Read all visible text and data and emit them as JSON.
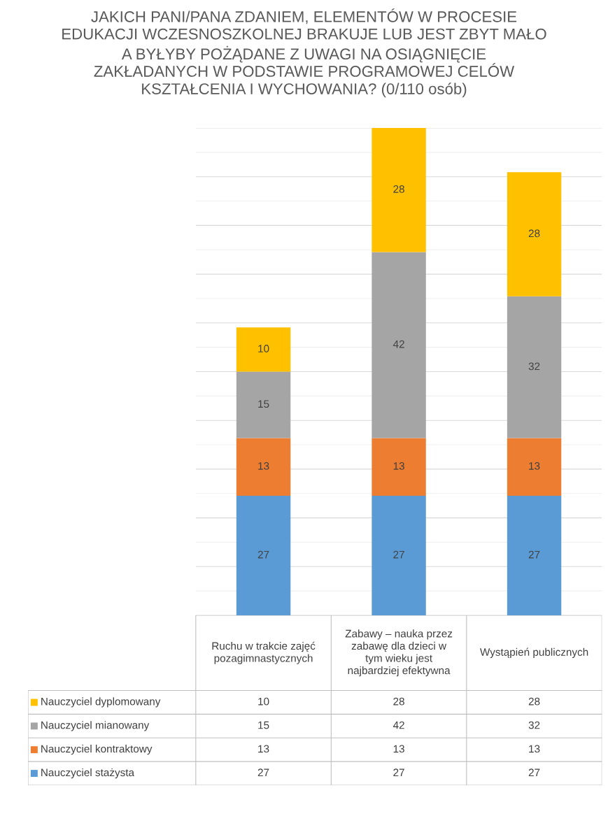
{
  "chart_data": {
    "type": "bar",
    "title": "JAKICH PANI/PANA ZDANIEM, ELEMENTÓW W PROCESIE EDUKACJI WCZESNOSZKOLNEJ BRAKUJE LUB JEST ZBYT MAŁO A BYŁYBY POŻĄDANE Z UWAGI NA OSIĄGNIĘCIE ZAKŁADANYCH W PODSTAWIE PROGRAMOWEJ CELÓW KSZTAŁCENIA I WYCHOWANIA? (0/110 osób)",
    "categories": [
      "Ruchu w trakcie zajęć pozagimnastycznych",
      "Zabawy – nauka przez zabawę dla dzieci w tym wieku jest najbardziej efektywna",
      "Wystąpień publicznych"
    ],
    "stacked": true,
    "grid": true,
    "legend": "bottom",
    "series": [
      {
        "name": "Nauczyciel stażysta",
        "color": "#5b9bd5",
        "values": [
          27,
          27,
          27
        ],
        "value_labels": [
          "27",
          "27",
          "27"
        ]
      },
      {
        "name": "Nauczyciel kontraktowy",
        "color": "#ed7d31",
        "values": [
          13,
          13,
          13
        ],
        "value_labels": [
          "13",
          "13",
          "13"
        ]
      },
      {
        "name": "Nauczyciel mianowany",
        "color": "#a5a5a5",
        "values": [
          15,
          42,
          32
        ],
        "value_labels": [
          "15",
          "42",
          "32"
        ]
      },
      {
        "name": "Nauczyciel dyplomowany",
        "color": "#ffc000",
        "values": [
          10,
          28,
          28
        ],
        "value_labels": [
          "10",
          "28",
          "28"
        ]
      }
    ]
  }
}
